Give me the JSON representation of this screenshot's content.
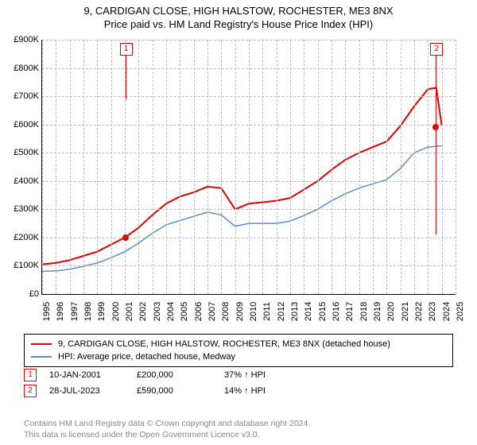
{
  "title_line1": "9, CARDIGAN CLOSE, HIGH HALSTOW, ROCHESTER, ME3 8NX",
  "title_line2": "Price paid vs. HM Land Registry's House Price Index (HPI)",
  "chart": {
    "type": "line",
    "xlim": [
      1995,
      2025
    ],
    "ylim": [
      0,
      900
    ],
    "yticks": [
      0,
      100,
      200,
      300,
      400,
      500,
      600,
      700,
      800,
      900
    ],
    "ytick_labels": [
      "£0",
      "£100K",
      "£200K",
      "£300K",
      "£400K",
      "£500K",
      "£600K",
      "£700K",
      "£800K",
      "£900K"
    ],
    "xticks": [
      1995,
      1996,
      1997,
      1998,
      1999,
      2000,
      2001,
      2002,
      2003,
      2004,
      2005,
      2006,
      2007,
      2008,
      2009,
      2010,
      2011,
      2012,
      2013,
      2014,
      2015,
      2016,
      2017,
      2018,
      2019,
      2020,
      2021,
      2022,
      2023,
      2024,
      2025
    ],
    "grid_color": "#bbbbbb",
    "series": [
      {
        "name": "price_paid",
        "color": "#e00000",
        "width": 2,
        "x": [
          1995,
          1996,
          1997,
          1998,
          1999,
          2000,
          2001,
          2002,
          2003,
          2004,
          2005,
          2006,
          2007,
          2008,
          2009,
          2010,
          2011,
          2012,
          2013,
          2014,
          2015,
          2016,
          2017,
          2018,
          2019,
          2020,
          2021,
          2022,
          2023,
          2023.6,
          2024
        ],
        "y": [
          105,
          110,
          120,
          135,
          150,
          175,
          200,
          235,
          280,
          320,
          345,
          360,
          380,
          375,
          300,
          320,
          325,
          330,
          340,
          370,
          400,
          440,
          475,
          500,
          520,
          540,
          595,
          665,
          725,
          730,
          595
        ]
      },
      {
        "name": "hpi",
        "color": "#5b8fc7",
        "width": 1.5,
        "x": [
          1995,
          1996,
          1997,
          1998,
          1999,
          2000,
          2001,
          2002,
          2003,
          2004,
          2005,
          2006,
          2007,
          2008,
          2009,
          2010,
          2011,
          2012,
          2013,
          2014,
          2015,
          2016,
          2017,
          2018,
          2019,
          2020,
          2021,
          2022,
          2023,
          2024
        ],
        "y": [
          80,
          82,
          88,
          98,
          110,
          128,
          150,
          180,
          215,
          245,
          260,
          275,
          290,
          280,
          240,
          250,
          250,
          250,
          258,
          278,
          300,
          330,
          355,
          375,
          390,
          405,
          445,
          500,
          520,
          525
        ]
      }
    ],
    "points": [
      {
        "x": 2001.03,
        "y": 200,
        "color": "#e00000"
      },
      {
        "x": 2023.57,
        "y": 590,
        "color": "#e00000"
      }
    ],
    "flags": [
      {
        "label": "1",
        "x": 2001.03,
        "pole": 55
      },
      {
        "label": "2",
        "x": 2023.57,
        "pole": 225
      }
    ]
  },
  "legend": {
    "items": [
      {
        "color": "#e00000",
        "label": "9, CARDIGAN CLOSE, HIGH HALSTOW, ROCHESTER, ME3 8NX (detached house)"
      },
      {
        "color": "#5b8fc7",
        "label": "HPI: Average price, detached house, Medway"
      }
    ]
  },
  "table": {
    "rows": [
      {
        "flag": "1",
        "date": "10-JAN-2001",
        "price": "£200,000",
        "pct": "37% ↑ HPI"
      },
      {
        "flag": "2",
        "date": "28-JUL-2023",
        "price": "£590,000",
        "pct": "14% ↑ HPI"
      }
    ]
  },
  "footer": {
    "line1": "Contains HM Land Registry data © Crown copyright and database right 2024.",
    "line2": "This data is licensed under the Open Government Licence v3.0."
  }
}
